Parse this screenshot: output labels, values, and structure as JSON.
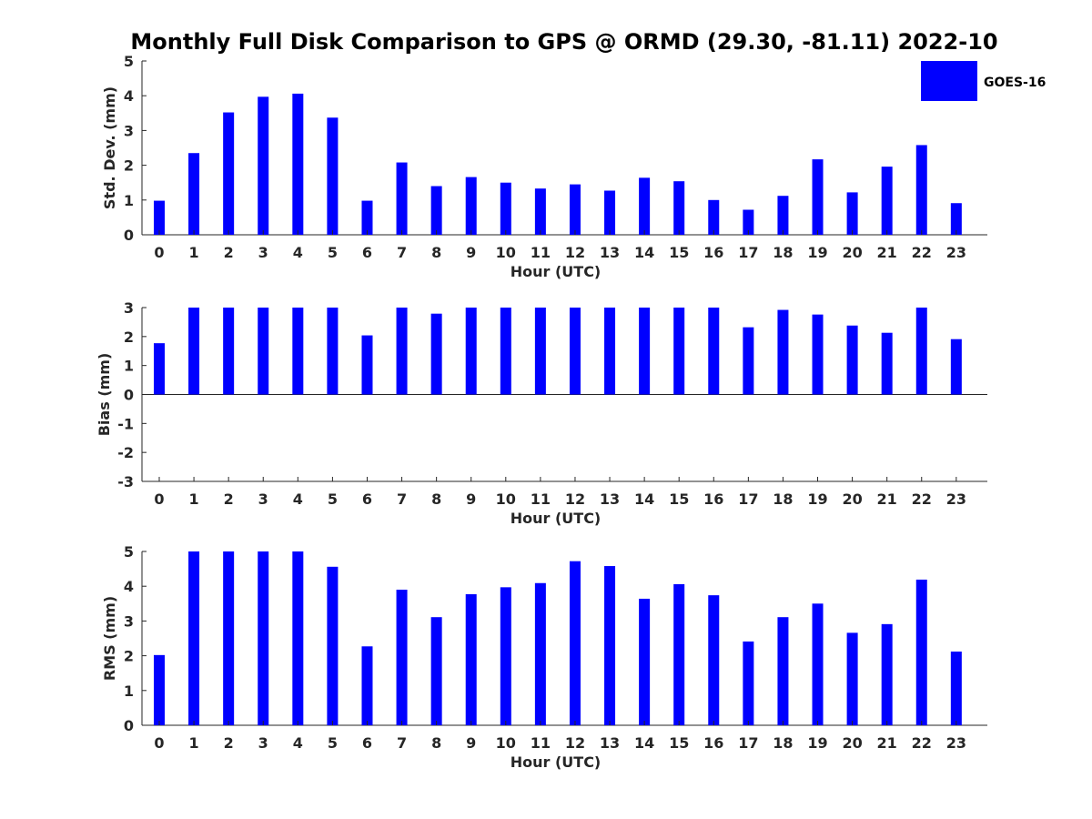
{
  "figure": {
    "title": "Monthly Full Disk Comparison to GPS @ ORMD (29.30, -81.11) 2022-10",
    "legend": {
      "label": "GOES-16",
      "color": "#0000ff",
      "placement": "top-right"
    }
  },
  "chart_data": [
    {
      "type": "bar",
      "xlabel": "Hour (UTC)",
      "ylabel": "Std. Dev. (mm)",
      "ylim": [
        0,
        5
      ],
      "yticks": [
        0,
        1,
        2,
        3,
        4,
        5
      ],
      "grid": false,
      "categories": [
        "0",
        "1",
        "2",
        "3",
        "4",
        "5",
        "6",
        "7",
        "8",
        "9",
        "10",
        "11",
        "12",
        "13",
        "14",
        "15",
        "16",
        "17",
        "18",
        "19",
        "20",
        "21",
        "22",
        "23"
      ],
      "series": [
        {
          "name": "GOES-16",
          "color": "#0000ff",
          "values": [
            0.98,
            2.35,
            3.52,
            3.97,
            4.06,
            3.37,
            0.98,
            2.08,
            1.4,
            1.66,
            1.5,
            1.33,
            1.45,
            1.27,
            1.64,
            1.54,
            1.0,
            0.72,
            1.12,
            2.17,
            1.22,
            1.96,
            2.58,
            0.91
          ]
        }
      ]
    },
    {
      "type": "bar",
      "xlabel": "Hour (UTC)",
      "ylabel": "Bias (mm)",
      "ylim": [
        -3,
        3
      ],
      "yticks": [
        -3,
        -2,
        -1,
        0,
        1,
        2,
        3
      ],
      "grid": false,
      "categories": [
        "0",
        "1",
        "2",
        "3",
        "4",
        "5",
        "6",
        "7",
        "8",
        "9",
        "10",
        "11",
        "12",
        "13",
        "14",
        "15",
        "16",
        "17",
        "18",
        "19",
        "20",
        "21",
        "22",
        "23"
      ],
      "series": [
        {
          "name": "GOES-16",
          "color": "#0000ff",
          "values": [
            1.77,
            3.0,
            3.0,
            3.0,
            3.0,
            3.0,
            2.04,
            3.0,
            2.79,
            3.0,
            3.0,
            3.0,
            3.0,
            3.0,
            3.0,
            3.0,
            3.0,
            2.32,
            2.92,
            2.76,
            2.38,
            2.13,
            3.0,
            1.91
          ]
        }
      ]
    },
    {
      "type": "bar",
      "xlabel": "Hour (UTC)",
      "ylabel": "RMS (mm)",
      "ylim": [
        0,
        5
      ],
      "yticks": [
        0,
        1,
        2,
        3,
        4,
        5
      ],
      "grid": false,
      "categories": [
        "0",
        "1",
        "2",
        "3",
        "4",
        "5",
        "6",
        "7",
        "8",
        "9",
        "10",
        "11",
        "12",
        "13",
        "14",
        "15",
        "16",
        "17",
        "18",
        "19",
        "20",
        "21",
        "22",
        "23"
      ],
      "series": [
        {
          "name": "GOES-16",
          "color": "#0000ff",
          "values": [
            2.02,
            5.0,
            5.0,
            5.0,
            5.0,
            4.56,
            2.27,
            3.9,
            3.11,
            3.77,
            3.97,
            4.09,
            4.72,
            4.58,
            3.64,
            4.06,
            3.74,
            2.41,
            3.11,
            3.5,
            2.66,
            2.91,
            4.19,
            2.12
          ]
        }
      ]
    }
  ]
}
